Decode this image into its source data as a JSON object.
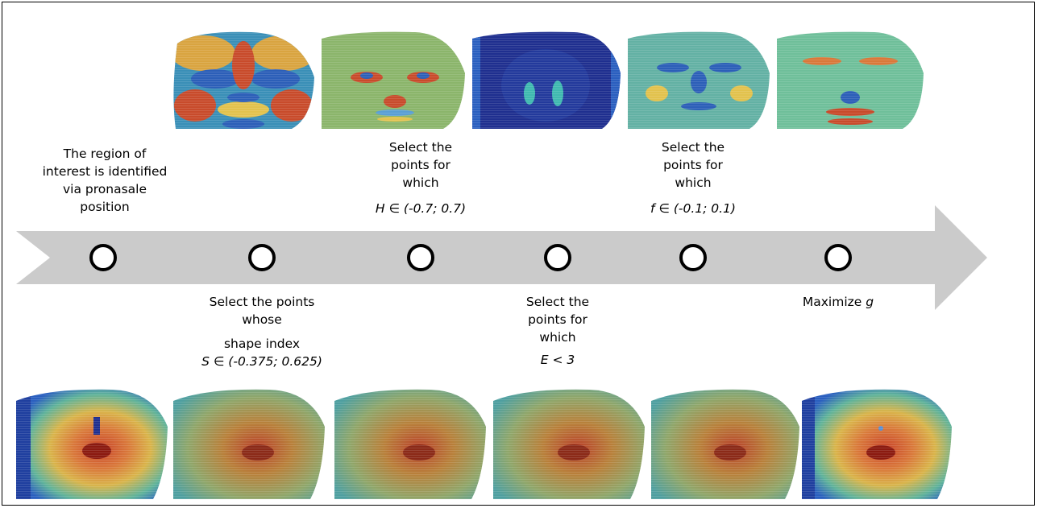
{
  "steps": [
    {
      "lines": [
        "The region of",
        "interest is identified",
        "via pronasale",
        "position"
      ]
    },
    {
      "lines": [
        "Select the points",
        "whose",
        "shape index"
      ],
      "condition": "S ∈ (-0.375; 0.625)"
    },
    {
      "lines": [
        "Select the",
        "points for",
        "which"
      ],
      "condition": "H ∈ (-0.7; 0.7)"
    },
    {
      "lines": [
        "Select the",
        "points for",
        "which"
      ],
      "condition": "E < 3"
    },
    {
      "lines": [
        "Select the",
        "points for",
        "which"
      ],
      "condition": "f ∈ (-0.1; 0.1)"
    },
    {
      "text": "Maximize",
      "var": "g"
    }
  ],
  "top_maps": [
    "shape-index-map-icon",
    "mean-curvature-map-icon",
    "energy-map-icon",
    "f-map-icon",
    "g-map-icon"
  ],
  "bottom_maps": [
    "roi-depth-map-icon",
    "depth-after-shape-index-icon",
    "depth-after-H-icon",
    "depth-after-E-icon",
    "depth-after-f-icon",
    "final-nose-tip-map-icon"
  ],
  "colors": {
    "arrow": "#cbcbcb",
    "circle_fill": "#ffffff",
    "circle_stroke": "#000000"
  }
}
